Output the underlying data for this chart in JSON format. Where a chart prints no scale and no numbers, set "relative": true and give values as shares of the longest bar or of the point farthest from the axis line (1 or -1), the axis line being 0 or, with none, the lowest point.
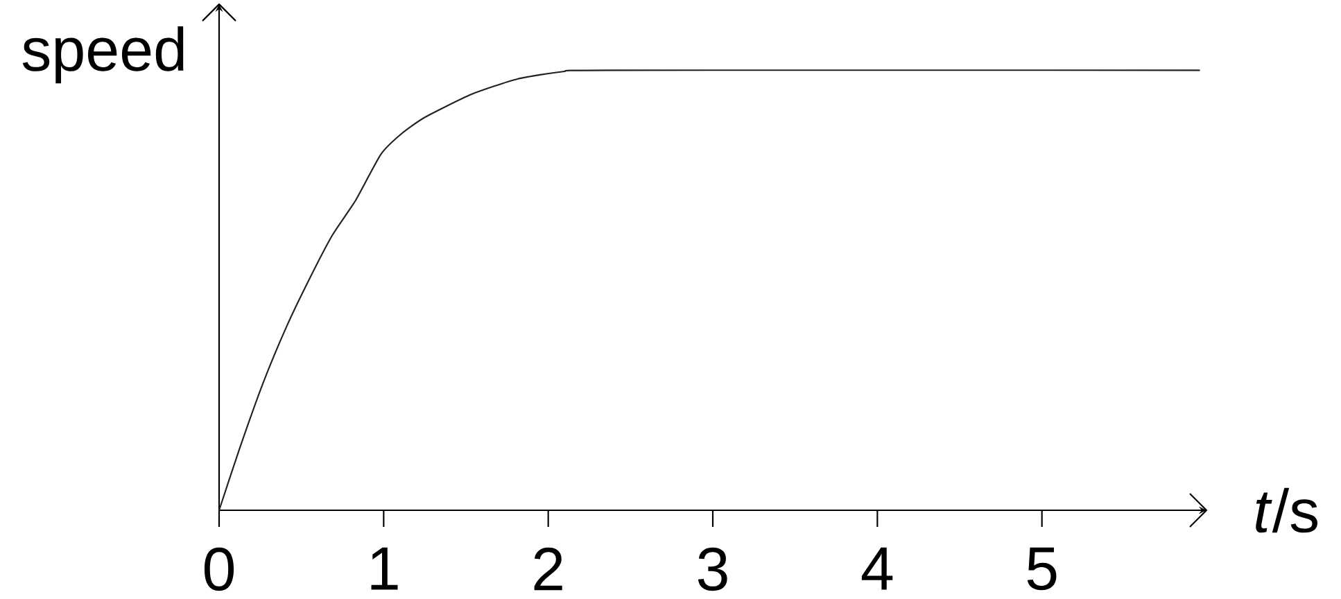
{
  "chart_data": {
    "type": "line",
    "relative": true,
    "xlabel": "*t*/s",
    "ylabel": "speed",
    "color": "#231f20",
    "x": [
      0,
      0.126,
      0.267,
      0.407,
      0.548,
      0.688,
      0.829,
      0.983,
      1.109,
      1.25,
      1.531,
      1.812,
      2.09,
      2.37,
      5.96
    ],
    "values": [
      0,
      0.142,
      0.289,
      0.415,
      0.525,
      0.625,
      0.704,
      0.809,
      0.856,
      0.893,
      0.945,
      0.98,
      0.997,
      1,
      1
    ],
    "xlim": [
      0,
      6.0
    ],
    "xticks": [
      0,
      1,
      2,
      3,
      4,
      5
    ]
  }
}
